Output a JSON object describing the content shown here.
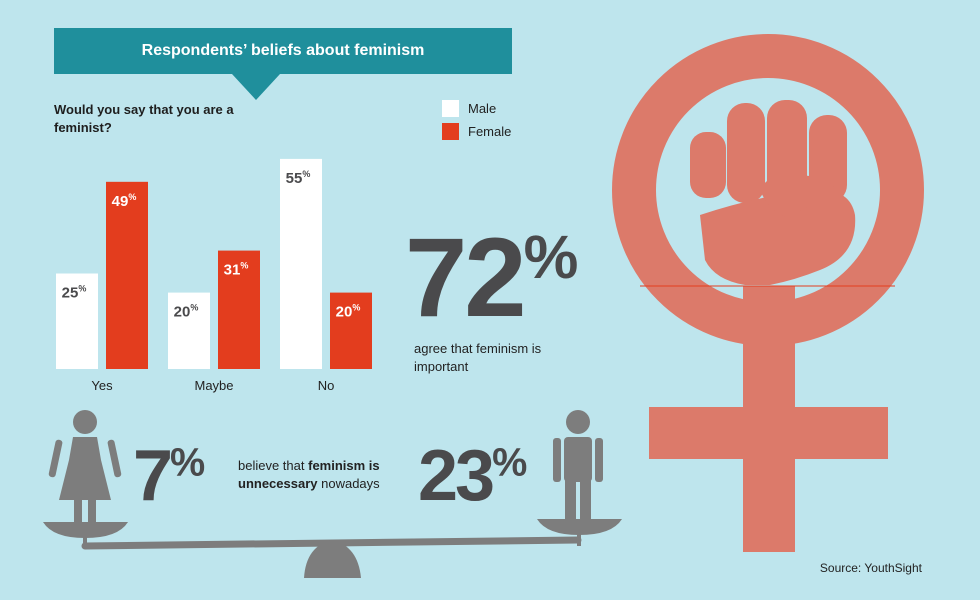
{
  "banner": {
    "title": "Respondents’ beliefs about feminism"
  },
  "chart_data": {
    "type": "bar",
    "title": "Would you say that you are a feminist?",
    "categories": [
      "Yes",
      "Maybe",
      "No"
    ],
    "series": [
      {
        "name": "Male",
        "values": [
          25,
          20,
          55
        ],
        "color": "#ffffff"
      },
      {
        "name": "Female",
        "values": [
          49,
          31,
          20
        ],
        "color": "#e33d1e"
      }
    ],
    "value_suffix": "%",
    "ylim": [
      0,
      60
    ],
    "grid": false,
    "legend_position": "top-right"
  },
  "stats": {
    "important": {
      "value": "72",
      "suffix": "%",
      "caption": "agree that feminism is important"
    },
    "unnecessary": {
      "female_value": "7",
      "male_value": "23",
      "suffix": "%",
      "caption_prefix": "believe that ",
      "caption_bold": "feminism is unnecessary",
      "caption_suffix": " nowadays"
    }
  },
  "source": "Source: YouthSight",
  "colors": {
    "background": "#bee5ed",
    "banner": "#1f8f9c",
    "female_bar": "#e33d1e",
    "male_bar": "#ffffff",
    "symbol": "#dc7a6a",
    "figure": "#7d7d7d",
    "stat_text": "#4a4a4c"
  },
  "icons": [
    "female-figure-icon",
    "male-figure-icon",
    "venus-fist-icon",
    "scale-icon"
  ]
}
